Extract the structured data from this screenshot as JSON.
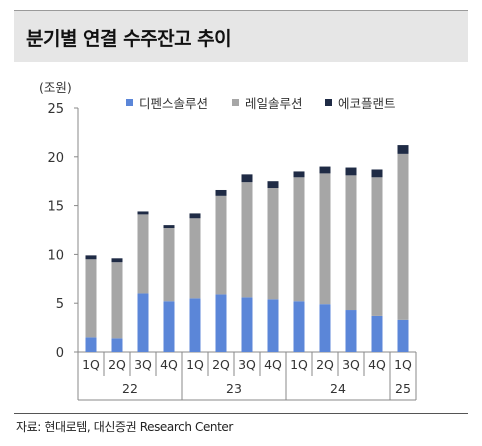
{
  "header": {
    "title": "분기별 연결 수주잔고 추이"
  },
  "source": "자료: 현대로템, 대신증권 Research Center",
  "colors": {
    "series1": "#5b86d8",
    "series2": "#a6a6a6",
    "series3": "#1f2b45"
  },
  "chart_data": {
    "type": "bar",
    "stacked": true,
    "unit": "(조원)",
    "ylim": [
      0,
      25
    ],
    "yticks": [
      0,
      5,
      10,
      15,
      20,
      25
    ],
    "categories": [
      "1Q",
      "2Q",
      "3Q",
      "4Q",
      "1Q",
      "2Q",
      "3Q",
      "4Q",
      "1Q",
      "2Q",
      "3Q",
      "4Q",
      "1Q"
    ],
    "year_groups": [
      {
        "label": "22",
        "start": 0,
        "end": 3
      },
      {
        "label": "23",
        "start": 4,
        "end": 7
      },
      {
        "label": "24",
        "start": 8,
        "end": 11
      },
      {
        "label": "25",
        "start": 12,
        "end": 12
      }
    ],
    "series": [
      {
        "name": "디펜스솔루션",
        "values": [
          1.5,
          1.4,
          6.0,
          5.2,
          5.5,
          5.9,
          5.6,
          5.4,
          5.2,
          4.9,
          4.3,
          3.7,
          3.3
        ]
      },
      {
        "name": "레일솔루션",
        "values": [
          8.0,
          7.8,
          8.1,
          7.5,
          8.2,
          10.1,
          11.8,
          11.4,
          12.7,
          13.4,
          13.8,
          14.2,
          17.0
        ]
      },
      {
        "name": "에코플랜트",
        "values": [
          0.4,
          0.4,
          0.3,
          0.3,
          0.5,
          0.6,
          0.8,
          0.7,
          0.6,
          0.7,
          0.8,
          0.8,
          0.9
        ]
      }
    ],
    "legend_position": "top",
    "grid": false
  }
}
